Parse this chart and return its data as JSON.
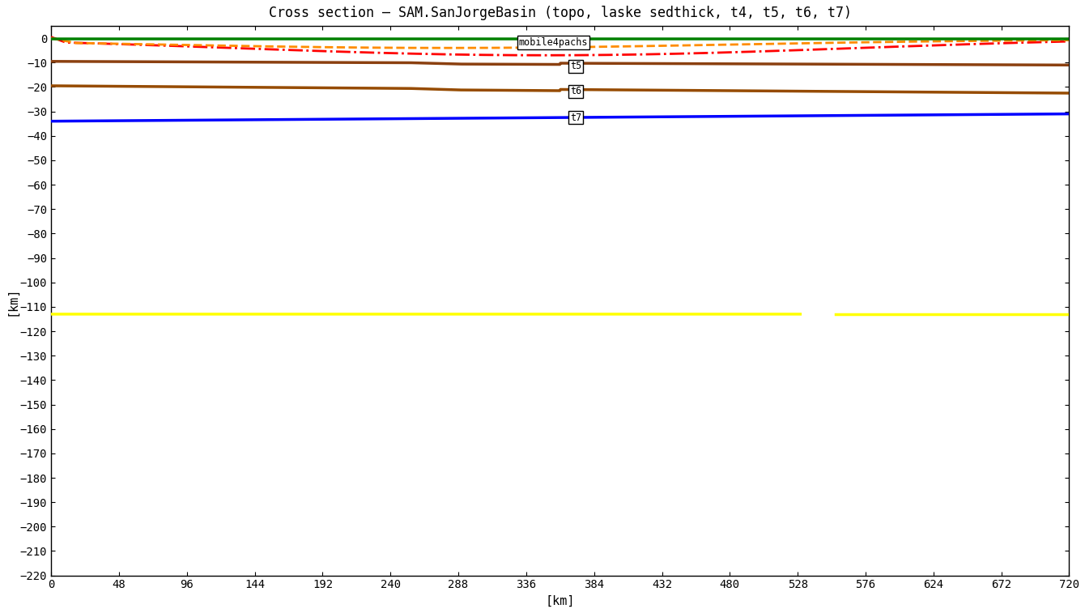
{
  "title": "Cross section – SAM.SanJorgeBasin (topo, laske sedthick, t4, t5, t6, t7)",
  "xlabel": "[km]",
  "ylabel": "[km]",
  "xlim": [
    0,
    720
  ],
  "ylim": [
    -220,
    5
  ],
  "xticks": [
    0,
    48,
    96,
    144,
    192,
    240,
    288,
    336,
    384,
    432,
    480,
    528,
    576,
    624,
    672,
    720
  ],
  "yticks": [
    0,
    -10,
    -20,
    -30,
    -40,
    -50,
    -60,
    -70,
    -80,
    -90,
    -100,
    -110,
    -120,
    -130,
    -140,
    -150,
    -160,
    -170,
    -180,
    -190,
    -200,
    -210,
    -220
  ],
  "topo_color": "#008000",
  "laske_color": "#ff8c00",
  "t4_color": "#ff0000",
  "t5_color": "#8B4010",
  "t6_color": "#964B00",
  "t7_color": "#0000ff",
  "yellow_color": "#ffff00",
  "bg_color": "#ffffff",
  "title_fontsize": 12,
  "tick_fontsize": 10,
  "axis_label_fontsize": 11
}
